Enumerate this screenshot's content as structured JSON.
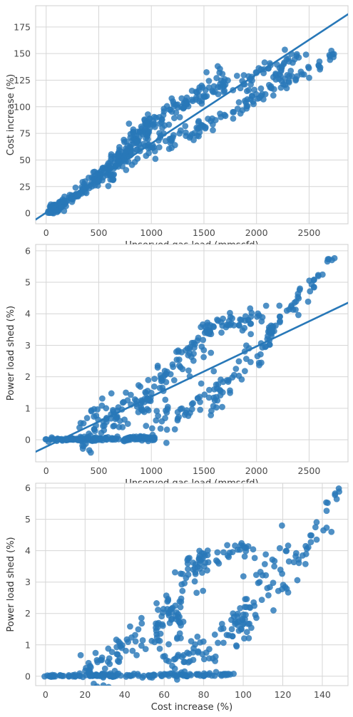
{
  "colors": {
    "series": "#2878b8",
    "grid": "#d6d6d6"
  },
  "chart_data": [
    {
      "type": "scatter",
      "xlabel": "Unserved gas load (mmscfd)",
      "ylabel": "Cost increase (%)",
      "xlim": [
        -100,
        2870
      ],
      "ylim": [
        -10,
        195
      ],
      "xticks": [
        0,
        500,
        1000,
        1500,
        2000,
        2500
      ],
      "yticks": [
        0,
        25,
        50,
        75,
        100,
        125,
        150,
        175
      ],
      "grid": true,
      "regression": {
        "x": [
          -100,
          2870
        ],
        "y": [
          -6,
          187
        ]
      },
      "clusters": [
        {
          "x0": 0,
          "x1": 160,
          "y0": 0,
          "y1": 10,
          "n": 45,
          "spread": 3
        },
        {
          "x0": 150,
          "x1": 600,
          "y0": 10,
          "y1": 40,
          "n": 90,
          "spread": 4
        },
        {
          "x0": 600,
          "x1": 1000,
          "y0": 40,
          "y1": 85,
          "n": 120,
          "spread": 6
        },
        {
          "x0": 1000,
          "x1": 1700,
          "y0": 85,
          "y1": 125,
          "n": 90,
          "spread": 6
        },
        {
          "x0": 1700,
          "x1": 2450,
          "y0": 118,
          "y1": 148,
          "n": 50,
          "spread": 5
        },
        {
          "x0": 700,
          "x1": 1500,
          "y0": 48,
          "y1": 82,
          "n": 70,
          "spread": 5
        },
        {
          "x0": 1500,
          "x1": 2300,
          "y0": 80,
          "y1": 128,
          "n": 55,
          "spread": 5
        },
        {
          "x0": 2300,
          "x1": 2750,
          "y0": 125,
          "y1": 149,
          "n": 25,
          "spread": 3
        }
      ]
    },
    {
      "type": "scatter",
      "xlabel": "Unserved gas load (mmscfd)",
      "ylabel": "Power load shed (%)",
      "xlim": [
        -100,
        2870
      ],
      "ylim": [
        -0.7,
        6.2
      ],
      "xticks": [
        0,
        500,
        1000,
        1500,
        2000,
        2500
      ],
      "yticks": [
        0,
        1,
        2,
        3,
        4,
        5,
        6
      ],
      "grid": true,
      "regression": {
        "x": [
          -100,
          2870
        ],
        "y": [
          -0.38,
          4.35
        ]
      },
      "clusters": [
        {
          "x0": 0,
          "x1": 1000,
          "y0": 0,
          "y1": 0.05,
          "n": 140,
          "spread": 0.03
        },
        {
          "x0": 300,
          "x1": 1000,
          "y0": 0.1,
          "y1": 1.4,
          "n": 90,
          "spread": 0.35
        },
        {
          "x0": 900,
          "x1": 1600,
          "y0": 1.2,
          "y1": 3.6,
          "n": 70,
          "spread": 0.3
        },
        {
          "x0": 1500,
          "x1": 2100,
          "y0": 3.4,
          "y1": 4.1,
          "n": 45,
          "spread": 0.15
        },
        {
          "x0": 900,
          "x1": 1700,
          "y0": 0.1,
          "y1": 1.6,
          "n": 60,
          "spread": 0.25
        },
        {
          "x0": 1600,
          "x1": 2150,
          "y0": 1.5,
          "y1": 3.4,
          "n": 45,
          "spread": 0.3
        },
        {
          "x0": 2100,
          "x1": 2500,
          "y0": 3.2,
          "y1": 4.9,
          "n": 30,
          "spread": 0.2
        },
        {
          "x0": 2500,
          "x1": 2750,
          "y0": 4.8,
          "y1": 5.95,
          "n": 14,
          "spread": 0.1
        }
      ]
    },
    {
      "type": "scatter",
      "xlabel": "Cost increase (%)",
      "ylabel": "Power load shed (%)",
      "xlim": [
        -5,
        153
      ],
      "ylim": [
        -0.3,
        6.15
      ],
      "xticks": [
        0,
        20,
        40,
        60,
        80,
        100,
        120,
        140
      ],
      "yticks": [
        0,
        1,
        2,
        3,
        4,
        5,
        6
      ],
      "grid": true,
      "clusters": [
        {
          "x0": 0,
          "x1": 95,
          "y0": 0,
          "y1": 0.05,
          "n": 140,
          "spread": 0.03
        },
        {
          "x0": 20,
          "x1": 70,
          "y0": 0.1,
          "y1": 1.8,
          "n": 90,
          "spread": 0.35
        },
        {
          "x0": 55,
          "x1": 80,
          "y0": 1.5,
          "y1": 3.6,
          "n": 45,
          "spread": 0.35
        },
        {
          "x0": 70,
          "x1": 105,
          "y0": 3.6,
          "y1": 4.1,
          "n": 45,
          "spread": 0.15
        },
        {
          "x0": 60,
          "x1": 105,
          "y0": 0.1,
          "y1": 2.0,
          "n": 70,
          "spread": 0.35
        },
        {
          "x0": 95,
          "x1": 125,
          "y0": 1.5,
          "y1": 4.6,
          "n": 45,
          "spread": 0.45
        },
        {
          "x0": 115,
          "x1": 145,
          "y0": 2.5,
          "y1": 5.2,
          "n": 30,
          "spread": 0.4
        },
        {
          "x0": 140,
          "x1": 149,
          "y0": 5.4,
          "y1": 5.95,
          "n": 8,
          "spread": 0.1
        }
      ]
    }
  ]
}
